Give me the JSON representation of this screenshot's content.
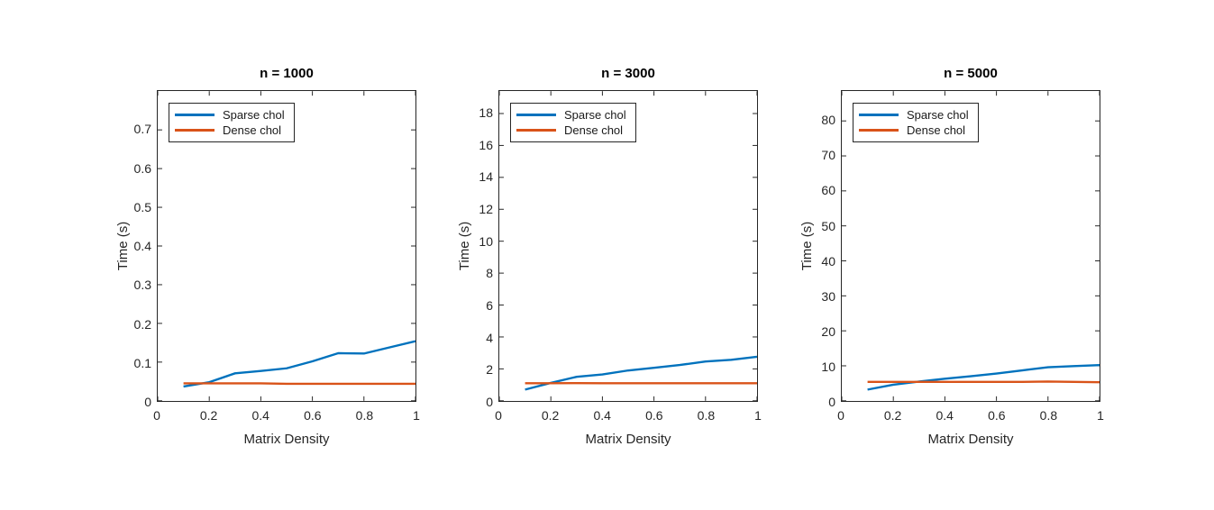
{
  "style": {
    "axis_color": "#262626",
    "background": "#ffffff",
    "title_color": "#000000"
  },
  "chart_data": [
    {
      "type": "line",
      "title": "n = 1000",
      "xlabel": "Matrix Density",
      "ylabel": "Time (s)",
      "x": [
        0.1,
        0.2,
        0.3,
        0.4,
        0.5,
        0.6,
        0.7,
        0.8,
        0.9,
        1.0
      ],
      "series": [
        {
          "name": "Sparse chol",
          "color": "#0072BD",
          "values": [
            0.037,
            0.048,
            0.071,
            0.077,
            0.084,
            0.102,
            0.123,
            0.122,
            0.138,
            0.154
          ]
        },
        {
          "name": "Dense chol",
          "color": "#D95319",
          "values": [
            0.045,
            0.045,
            0.045,
            0.045,
            0.044,
            0.044,
            0.044,
            0.044,
            0.044,
            0.044
          ]
        }
      ],
      "xlim": [
        0,
        1
      ],
      "ylim": [
        0,
        0.8
      ],
      "xticks": [
        0,
        0.2,
        0.4,
        0.6,
        0.8,
        1
      ],
      "xtick_labels": [
        "0",
        "0.2",
        "0.4",
        "0.6",
        "0.8",
        "1"
      ],
      "yticks": [
        0,
        0.1,
        0.2,
        0.3,
        0.4,
        0.5,
        0.6,
        0.7
      ],
      "ytick_labels": [
        "0",
        "0.1",
        "0.2",
        "0.3",
        "0.4",
        "0.5",
        "0.6",
        "0.7"
      ],
      "grid": false,
      "legend_location": "northwest"
    },
    {
      "type": "line",
      "title": "n = 3000",
      "xlabel": "Matrix Density",
      "ylabel": "Time (s)",
      "x": [
        0.1,
        0.2,
        0.3,
        0.4,
        0.5,
        0.6,
        0.7,
        0.8,
        0.9,
        1.0
      ],
      "series": [
        {
          "name": "Sparse chol",
          "color": "#0072BD",
          "values": [
            0.7,
            1.12,
            1.5,
            1.65,
            1.9,
            2.07,
            2.24,
            2.46,
            2.57,
            2.76
          ]
        },
        {
          "name": "Dense chol",
          "color": "#D95319",
          "values": [
            1.1,
            1.1,
            1.11,
            1.1,
            1.1,
            1.1,
            1.1,
            1.1,
            1.1,
            1.1
          ]
        }
      ],
      "xlim": [
        0,
        1
      ],
      "ylim": [
        0,
        19.4
      ],
      "xticks": [
        0,
        0.2,
        0.4,
        0.6,
        0.8,
        1
      ],
      "xtick_labels": [
        "0",
        "0.2",
        "0.4",
        "0.6",
        "0.8",
        "1"
      ],
      "yticks": [
        0,
        2,
        4,
        6,
        8,
        10,
        12,
        14,
        16,
        18
      ],
      "ytick_labels": [
        "0",
        "2",
        "4",
        "6",
        "8",
        "10",
        "12",
        "14",
        "16",
        "18"
      ],
      "grid": false,
      "legend_location": "northwest"
    },
    {
      "type": "line",
      "title": "n = 5000",
      "xlabel": "Matrix Density",
      "ylabel": "Time (s)",
      "x": [
        0.1,
        0.2,
        0.3,
        0.4,
        0.5,
        0.6,
        0.7,
        0.8,
        0.9,
        1.0
      ],
      "series": [
        {
          "name": "Sparse chol",
          "color": "#0072BD",
          "values": [
            3.2,
            4.6,
            5.5,
            6.3,
            7.0,
            7.8,
            8.7,
            9.6,
            9.9,
            10.2
          ]
        },
        {
          "name": "Dense chol",
          "color": "#D95319",
          "values": [
            5.4,
            5.4,
            5.4,
            5.4,
            5.4,
            5.4,
            5.4,
            5.5,
            5.4,
            5.3
          ]
        }
      ],
      "xlim": [
        0,
        1
      ],
      "ylim": [
        0,
        88.5
      ],
      "xticks": [
        0,
        0.2,
        0.4,
        0.6,
        0.8,
        1
      ],
      "xtick_labels": [
        "0",
        "0.2",
        "0.4",
        "0.6",
        "0.8",
        "1"
      ],
      "yticks": [
        0,
        10,
        20,
        30,
        40,
        50,
        60,
        70,
        80
      ],
      "ytick_labels": [
        "0",
        "10",
        "20",
        "30",
        "40",
        "50",
        "60",
        "70",
        "80"
      ],
      "grid": false,
      "legend_location": "northwest"
    }
  ]
}
